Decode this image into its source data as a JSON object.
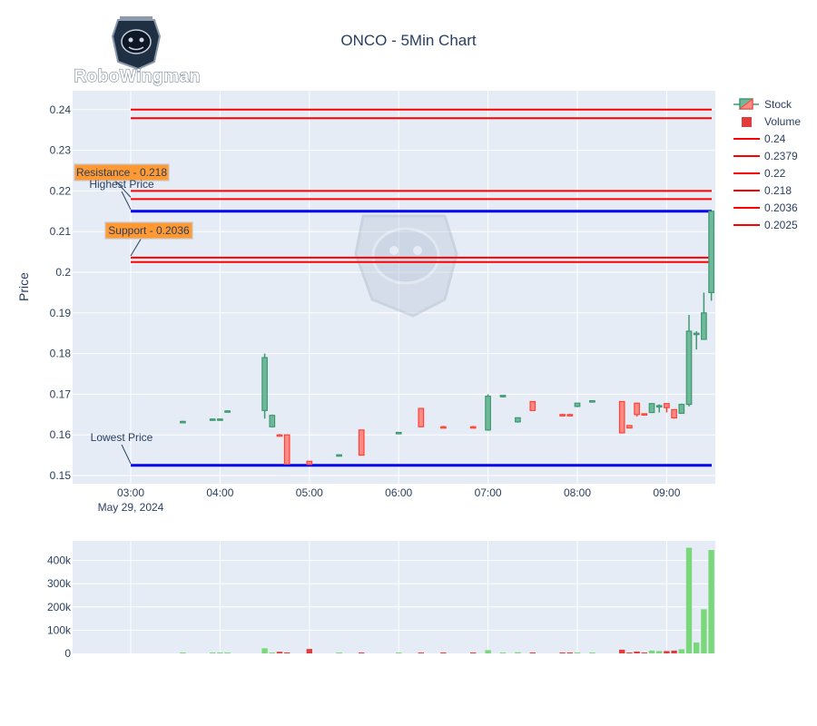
{
  "logo_text": "RoboWingman",
  "chart_data": {
    "type": "candlestick",
    "title": "ONCO - 5Min Chart",
    "ylabel": "Price",
    "date_label": "May 29, 2024",
    "x_ticks": [
      "03:00",
      "04:00",
      "05:00",
      "06:00",
      "07:00",
      "08:00",
      "09:00"
    ],
    "y_ticks": [
      "0.15",
      "0.16",
      "0.17",
      "0.18",
      "0.19",
      "0.2",
      "0.21",
      "0.22",
      "0.23",
      "0.24"
    ],
    "ylim": [
      0.148,
      0.246
    ],
    "volume_ticks": [
      "0",
      "100k",
      "200k",
      "300k",
      "400k"
    ],
    "volume_ylim": [
      0,
      480000
    ],
    "legend": [
      "Stock",
      "Volume",
      "0.24",
      "0.2379",
      "0.22",
      "0.218",
      "0.2036",
      "0.2025"
    ],
    "grid": true,
    "legend_position": "right",
    "colors": {
      "up": "#3d9970",
      "up_fill": "#6fb99a",
      "down": "#ff4136",
      "down_fill": "#ff8a84",
      "vol_up": "#7ad77a",
      "vol_down": "#e03c3c",
      "level": "#ff0000",
      "extreme": "#0000ee",
      "annotation_bg": "#ff9933",
      "plot_bg": "#e5ecf6"
    },
    "levels": [
      0.24,
      0.2379,
      0.22,
      0.218,
      0.2036,
      0.2025
    ],
    "highest_price": 0.215,
    "lowest_price": 0.1525,
    "annotations": [
      {
        "text": "Resistance - 0.218",
        "boxed": true,
        "y": 0.218
      },
      {
        "text": "Highest Price",
        "boxed": false,
        "y": 0.215
      },
      {
        "text": "Support - 0.2036",
        "boxed": true,
        "y": 0.2036
      },
      {
        "text": "Lowest Price",
        "boxed": false,
        "y": 0.1525
      }
    ],
    "candles": [
      {
        "t": "03:35",
        "o": 0.1632,
        "h": 0.1635,
        "l": 0.163,
        "c": 0.1633,
        "v": 1000
      },
      {
        "t": "03:55",
        "o": 0.1638,
        "h": 0.164,
        "l": 0.1636,
        "c": 0.1639,
        "v": 1000
      },
      {
        "t": "04:00",
        "o": 0.1638,
        "h": 0.164,
        "l": 0.1636,
        "c": 0.1639,
        "v": 1000
      },
      {
        "t": "04:05",
        "o": 0.1658,
        "h": 0.166,
        "l": 0.1656,
        "c": 0.1659,
        "v": 1000
      },
      {
        "t": "04:30",
        "o": 0.166,
        "h": 0.18,
        "l": 0.164,
        "c": 0.179,
        "v": 22000
      },
      {
        "t": "04:35",
        "o": 0.162,
        "h": 0.165,
        "l": 0.1618,
        "c": 0.1648,
        "v": 1000
      },
      {
        "t": "04:40",
        "o": 0.16,
        "h": 0.1602,
        "l": 0.1598,
        "c": 0.1599,
        "v": 7000
      },
      {
        "t": "04:45",
        "o": 0.16,
        "h": 0.16,
        "l": 0.1528,
        "c": 0.1528,
        "v": 4000
      },
      {
        "t": "05:00",
        "o": 0.1535,
        "h": 0.1536,
        "l": 0.1526,
        "c": 0.1527,
        "v": 19000
      },
      {
        "t": "05:20",
        "o": 0.155,
        "h": 0.1552,
        "l": 0.1548,
        "c": 0.1551,
        "v": 1000
      },
      {
        "t": "05:35",
        "o": 0.1612,
        "h": 0.1612,
        "l": 0.155,
        "c": 0.155,
        "v": 1000
      },
      {
        "t": "06:00",
        "o": 0.1605,
        "h": 0.1607,
        "l": 0.1603,
        "c": 0.1606,
        "v": 1000
      },
      {
        "t": "06:15",
        "o": 0.1665,
        "h": 0.1665,
        "l": 0.162,
        "c": 0.162,
        "v": 1000
      },
      {
        "t": "06:30",
        "o": 0.162,
        "h": 0.1622,
        "l": 0.1618,
        "c": 0.1619,
        "v": 1000
      },
      {
        "t": "06:50",
        "o": 0.162,
        "h": 0.1622,
        "l": 0.1618,
        "c": 0.1619,
        "v": 2000
      },
      {
        "t": "07:00",
        "o": 0.1612,
        "h": 0.17,
        "l": 0.161,
        "c": 0.1695,
        "v": 14000
      },
      {
        "t": "07:10",
        "o": 0.1695,
        "h": 0.1698,
        "l": 0.1692,
        "c": 0.1697,
        "v": 1000
      },
      {
        "t": "07:20",
        "o": 0.1632,
        "h": 0.1643,
        "l": 0.163,
        "c": 0.1642,
        "v": 5000
      },
      {
        "t": "07:30",
        "o": 0.1682,
        "h": 0.1682,
        "l": 0.166,
        "c": 0.166,
        "v": 1000
      },
      {
        "t": "07:50",
        "o": 0.165,
        "h": 0.1652,
        "l": 0.1648,
        "c": 0.1649,
        "v": 1000
      },
      {
        "t": "07:55",
        "o": 0.165,
        "h": 0.1652,
        "l": 0.1648,
        "c": 0.1649,
        "v": 1000
      },
      {
        "t": "08:00",
        "o": 0.167,
        "h": 0.1678,
        "l": 0.1668,
        "c": 0.1678,
        "v": 1000
      },
      {
        "t": "08:10",
        "o": 0.1682,
        "h": 0.1685,
        "l": 0.168,
        "c": 0.1684,
        "v": 1000
      },
      {
        "t": "08:30",
        "o": 0.1682,
        "h": 0.1682,
        "l": 0.1605,
        "c": 0.1605,
        "v": 16000
      },
      {
        "t": "08:35",
        "o": 0.1623,
        "h": 0.1623,
        "l": 0.1617,
        "c": 0.1617,
        "v": 1000
      },
      {
        "t": "08:40",
        "o": 0.1678,
        "h": 0.1678,
        "l": 0.1645,
        "c": 0.165,
        "v": 8000
      },
      {
        "t": "08:45",
        "o": 0.1652,
        "h": 0.1653,
        "l": 0.1648,
        "c": 0.1649,
        "v": 2000
      },
      {
        "t": "08:50",
        "o": 0.1655,
        "h": 0.1677,
        "l": 0.1655,
        "c": 0.1677,
        "v": 12000
      },
      {
        "t": "08:55",
        "o": 0.167,
        "h": 0.1675,
        "l": 0.1655,
        "c": 0.1672,
        "v": 10000
      },
      {
        "t": "09:00",
        "o": 0.1677,
        "h": 0.1677,
        "l": 0.1655,
        "c": 0.1667,
        "v": 10000
      },
      {
        "t": "09:05",
        "o": 0.1662,
        "h": 0.1662,
        "l": 0.164,
        "c": 0.1642,
        "v": 12000
      },
      {
        "t": "09:10",
        "o": 0.1653,
        "h": 0.1677,
        "l": 0.1653,
        "c": 0.1675,
        "v": 18000
      },
      {
        "t": "09:15",
        "o": 0.1675,
        "h": 0.1895,
        "l": 0.167,
        "c": 0.1855,
        "v": 455000
      },
      {
        "t": "09:20",
        "o": 0.185,
        "h": 0.1855,
        "l": 0.181,
        "c": 0.185,
        "v": 47000
      },
      {
        "t": "09:25",
        "o": 0.1835,
        "h": 0.195,
        "l": 0.1835,
        "c": 0.19,
        "v": 190000
      },
      {
        "t": "09:30",
        "o": 0.195,
        "h": 0.215,
        "l": 0.193,
        "c": 0.215,
        "v": 445000
      }
    ]
  }
}
